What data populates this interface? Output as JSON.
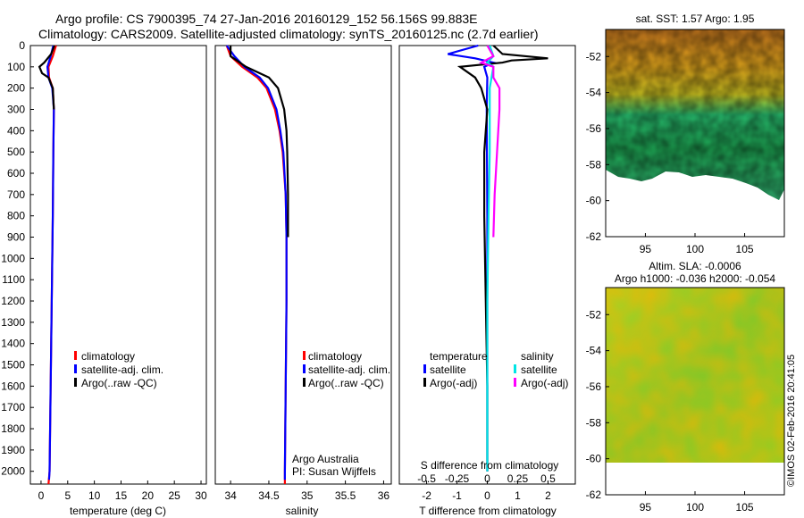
{
  "header": {
    "line1": "Argo profile: CS 7900395_74 27-Jan-2016 20160129_152 56.156S 99.883E",
    "line2": "Climatology: CARS2009. Satellite-adjusted climatology: synTS_20160125.nc (2.7d earlier)"
  },
  "credit": {
    "stamp": "©IMOS 02-Feb-2016 20:41:05",
    "org": "Argo Australia",
    "pi": "PI: Susan Wijffels"
  },
  "colors": {
    "climatology": "#ff0000",
    "satellite": "#0000ff",
    "argo": "#000000",
    "s_satellite": "#00e5e5",
    "s_argo": "#ff00ff"
  },
  "chart_data": [
    {
      "id": "temperature",
      "type": "line",
      "xlabel": "temperature (deg C)",
      "ylabel": "",
      "xlim": [
        -2,
        31
      ],
      "ylim": [
        2060,
        0
      ],
      "xticks": [
        "0",
        "5",
        "10",
        "15",
        "20",
        "25",
        "30"
      ],
      "xtick_values": [
        0,
        5,
        10,
        15,
        20,
        25,
        30
      ],
      "yticks": [
        "0",
        "100",
        "200",
        "300",
        "400",
        "500",
        "600",
        "700",
        "800",
        "900",
        "1000",
        "1100",
        "1200",
        "1300",
        "1400",
        "1500",
        "1600",
        "1700",
        "1800",
        "1900",
        "2000"
      ],
      "ytick_values": [
        0,
        100,
        200,
        300,
        400,
        500,
        600,
        700,
        800,
        900,
        1000,
        1100,
        1200,
        1300,
        1400,
        1500,
        1600,
        1700,
        1800,
        1900,
        2000
      ],
      "legend": [
        "climatology",
        "satellite-adj. clim.",
        "Argo(..raw -QC)"
      ],
      "series": [
        {
          "name": "climatology",
          "color": "#ff0000",
          "depth": [
            0,
            50,
            100,
            150,
            200,
            300,
            500,
            800,
            1200,
            1600,
            2000,
            2060
          ],
          "values": [
            2.8,
            2.2,
            1.4,
            1.5,
            2.2,
            2.4,
            2.3,
            2.2,
            2.0,
            1.8,
            1.6,
            1.4
          ]
        },
        {
          "name": "satellite-adj. clim.",
          "color": "#0000ff",
          "depth": [
            0,
            50,
            100,
            150,
            200,
            300,
            500,
            800,
            1200,
            1600,
            2000,
            2040
          ],
          "values": [
            2.3,
            1.8,
            1.2,
            1.4,
            2.1,
            2.4,
            2.3,
            2.2,
            2.0,
            1.8,
            1.6,
            1.5
          ]
        },
        {
          "name": "Argo(..raw -QC)",
          "color": "#000000",
          "depth": [
            0,
            40,
            80,
            100,
            130,
            150,
            200,
            300
          ],
          "values": [
            2.5,
            1.9,
            0.6,
            -0.3,
            0.2,
            1.4,
            2.2,
            2.4
          ]
        }
      ]
    },
    {
      "id": "salinity",
      "type": "line",
      "xlabel": "salinity",
      "ylabel": "",
      "xlim": [
        33.8,
        36.1
      ],
      "ylim": [
        2060,
        0
      ],
      "xticks": [
        "34",
        "34.5",
        "35",
        "35.5",
        "36"
      ],
      "xtick_values": [
        34,
        34.5,
        35,
        35.5,
        36
      ],
      "legend": [
        "climatology",
        "satellite-adj. clim.",
        "Argo(..raw -QC)"
      ],
      "series": [
        {
          "name": "climatology",
          "color": "#ff0000",
          "depth": [
            0,
            50,
            100,
            150,
            200,
            300,
            400,
            500,
            700,
            900,
            1200,
            1600,
            2000,
            2060
          ],
          "values": [
            33.95,
            34.0,
            34.15,
            34.35,
            34.47,
            34.58,
            34.64,
            34.68,
            34.72,
            34.73,
            34.73,
            34.72,
            34.71,
            34.71
          ]
        },
        {
          "name": "satellite-adj. clim.",
          "color": "#0000ff",
          "depth": [
            0,
            50,
            100,
            150,
            200,
            300,
            400,
            500,
            700,
            900,
            1200,
            1600,
            2000,
            2040
          ],
          "values": [
            33.95,
            34.05,
            34.18,
            34.38,
            34.49,
            34.6,
            34.65,
            34.69,
            34.72,
            34.73,
            34.73,
            34.72,
            34.71,
            34.71
          ]
        },
        {
          "name": "Argo(..raw -QC)",
          "color": "#000000",
          "depth": [
            0,
            50,
            100,
            150,
            200,
            300,
            400,
            500,
            700,
            900
          ],
          "values": [
            34.0,
            34.0,
            34.2,
            34.5,
            34.62,
            34.7,
            34.73,
            34.74,
            34.75,
            34.75
          ]
        }
      ]
    },
    {
      "id": "differences",
      "type": "line",
      "xlabel": "T difference from climatology",
      "top_label": "S difference from climatology",
      "xlim": [
        -2.9,
        2.9
      ],
      "ylim": [
        2060,
        0
      ],
      "xticks": [
        "-2",
        "-1",
        "0",
        "1",
        "2"
      ],
      "xtick_values": [
        -2,
        -1,
        0,
        1,
        2
      ],
      "s_ticks": [
        "-0.5",
        "-0.25",
        "0",
        "0.25",
        "0.5"
      ],
      "legend_groups": [
        {
          "title": "temperature",
          "items": [
            "satellite",
            "Argo(-adj)"
          ]
        },
        {
          "title": "salinity",
          "items": [
            "satellite",
            "Argo(-adj)"
          ]
        }
      ],
      "series": [
        {
          "name": "T satellite",
          "color": "#0000ff",
          "depth": [
            0,
            40,
            60,
            80,
            100,
            150,
            300,
            800,
            1500,
            2000
          ],
          "values": [
            -0.3,
            -1.3,
            -0.4,
            0.2,
            -0.1,
            0.0,
            -0.02,
            0.0,
            0.0,
            0.0
          ]
        },
        {
          "name": "T Argo(-adj)",
          "color": "#000000",
          "depth": [
            0,
            40,
            60,
            70,
            80,
            100,
            150,
            200,
            300,
            500,
            800,
            1200,
            1600,
            2000
          ],
          "values": [
            0.2,
            0.5,
            2.0,
            0.8,
            0.5,
            -0.9,
            -0.4,
            -0.2,
            0.0,
            -0.1,
            -0.1,
            -0.05,
            0.0,
            0.0
          ]
        },
        {
          "name": "S satellite",
          "color": "#00e5e5",
          "depth": [
            0,
            50,
            80,
            100,
            200,
            500,
            800,
            1200,
            1600,
            2000
          ],
          "values": [
            0.02,
            0.05,
            0.0,
            0.05,
            0.02,
            0.02,
            0.01,
            0.0,
            0.0,
            0.0
          ]
        },
        {
          "name": "S Argo(-adj)",
          "color": "#ff00ff",
          "depth": [
            0,
            50,
            80,
            100,
            150,
            200,
            300,
            500,
            700,
            900
          ],
          "values": [
            0.0,
            0.05,
            -0.05,
            0.05,
            0.05,
            0.1,
            0.1,
            0.08,
            0.06,
            0.05
          ]
        }
      ]
    },
    {
      "id": "sst_map",
      "type": "heatmap",
      "title": "sat. SST: 1.57 Argo: 1.95",
      "xlim": [
        91,
        109
      ],
      "ylim": [
        -62,
        -50.5
      ],
      "xticks": [
        "95",
        "100",
        "105"
      ],
      "xtick_values": [
        95,
        100,
        105
      ],
      "yticks": [
        "-52",
        "-54",
        "-56",
        "-58",
        "-60",
        "-62"
      ],
      "ytick_values": [
        -52,
        -54,
        -56,
        -58,
        -60,
        -62
      ]
    },
    {
      "id": "sla_map",
      "type": "heatmap",
      "title": "Altim. SLA: -0.0006",
      "subtitle": "Argo h1000: -0.036 h2000: -0.054",
      "xlim": [
        91,
        109
      ],
      "ylim": [
        -62,
        -50.5
      ],
      "xticks": [
        "95",
        "100",
        "105"
      ],
      "xtick_values": [
        95,
        100,
        105
      ],
      "yticks": [
        "-52",
        "-54",
        "-56",
        "-58",
        "-60",
        "-62"
      ],
      "ytick_values": [
        -52,
        -54,
        -56,
        -58,
        -60,
        -62
      ]
    }
  ]
}
